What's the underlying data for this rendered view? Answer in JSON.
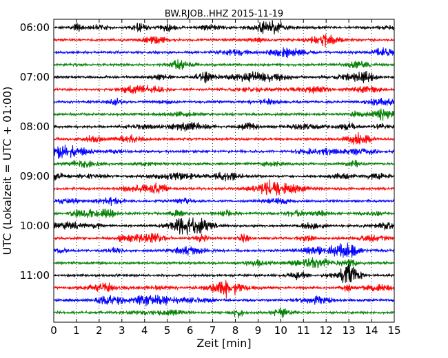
{
  "chart_data": {
    "type": "line",
    "title": "BW.RJOB..HHZ 2015-11-19",
    "xlabel": "Zeit  [min]",
    "ylabel": "UTC (Lokalzeit = UTC + 01:00)",
    "xlim": [
      0,
      15
    ],
    "x_ticks": [
      "0",
      "1",
      "2",
      "3",
      "4",
      "5",
      "6",
      "7",
      "8",
      "9",
      "10",
      "11",
      "12",
      "13",
      "14",
      "15"
    ],
    "y_ticks": [
      "06:00",
      "07:00",
      "08:00",
      "09:00",
      "10:00",
      "11:00"
    ],
    "grid": "vertical dotted at each minute",
    "rows_per_hour": 4,
    "minutes_per_row": 15,
    "row_start_times": [
      "06:00",
      "06:15",
      "06:30",
      "06:45",
      "07:00",
      "07:15",
      "07:30",
      "07:45",
      "08:00",
      "08:15",
      "08:30",
      "08:45",
      "09:00",
      "09:15",
      "09:30",
      "09:45",
      "10:00",
      "10:15",
      "10:30",
      "10:45",
      "11:00",
      "11:15",
      "11:30",
      "11:45"
    ],
    "colors": [
      "#000000",
      "#ff0000",
      "#0000ff",
      "#008000"
    ]
  }
}
